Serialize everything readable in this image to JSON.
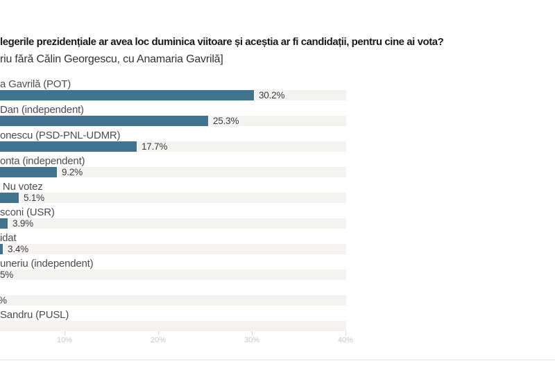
{
  "title": "legerile prezidențiale ar avea loc duminica viitoare și aceștia ar fi candidații, pentru cine ai vota?",
  "subtitle": "riu fără Călin Georgescu, cu Anamaria Gavrilă]",
  "chart_data": {
    "type": "bar",
    "orientation": "horizontal",
    "title": "legerile prezidențiale ar avea loc duminica viitoare și aceștia ar fi candidații, pentru cine ai vota?",
    "subtitle": "riu fără Călin Georgescu, cu Anamaria Gavrilă]",
    "rows": [
      {
        "label": "a Gavrilă (POT)",
        "value_label": "30.2%",
        "pct": 30.2
      },
      {
        "label": "Dan (independent)",
        "value_label": "25.3%",
        "pct": 25.3
      },
      {
        "label": "onescu (PSD-PNL-UDMR)",
        "value_label": "17.7%",
        "pct": 17.7
      },
      {
        "label": "onta (independent)",
        "value_label": "9.2%",
        "pct": 9.2
      },
      {
        "label": "/ Nu votez",
        "value_label": "5.1%",
        "pct": 5.1
      },
      {
        "label": "sconi (USR)",
        "value_label": "3.9%",
        "pct": 3.9
      },
      {
        "label": "idat",
        "value_label": "3.4%",
        "pct": 3.4
      },
      {
        "label": "uneriu (independent)",
        "value_label": "5%",
        "pct": null
      },
      {
        "label": "",
        "value_label": "%",
        "pct": null
      },
      {
        "label": "Sandru (PUSL)",
        "value_label": "",
        "pct": null
      }
    ],
    "x_ticks": [
      {
        "label": "10%",
        "pct": 10
      },
      {
        "label": "20%",
        "pct": 20
      },
      {
        "label": "30%",
        "pct": 30
      },
      {
        "label": "40%",
        "pct": 40
      }
    ],
    "colors": {
      "bar": "#3f7390",
      "track": "#f4f3ef"
    },
    "grid": false,
    "legend": false,
    "axis_visible_range_pct": [
      3.1,
      40
    ]
  }
}
